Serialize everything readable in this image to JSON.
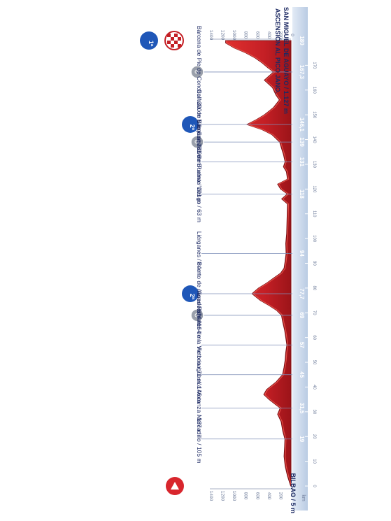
{
  "chart_data": {
    "type": "area",
    "orientation": "rotated-90-clockwise",
    "title": "ASCENSIÓN AL PICO JANO.",
    "finish_label": "SAN MIGUEL DE AGUAYO / 1.127 m",
    "start_label": "BILBAO / 5 m",
    "xlabel": "km",
    "xlim": [
      0,
      180
    ],
    "ylim": [
      0,
      1400
    ],
    "x_ticks": [
      0,
      10,
      20,
      30,
      40,
      50,
      60,
      70,
      80,
      90,
      100,
      110,
      120,
      130,
      140,
      150,
      160,
      170
    ],
    "y_ticks": [
      0,
      200,
      400,
      600,
      800,
      1000,
      1200,
      1400
    ],
    "profile": [
      [
        0,
        5
      ],
      [
        4,
        60
      ],
      [
        8,
        100
      ],
      [
        12,
        120
      ],
      [
        16,
        110
      ],
      [
        19,
        105
      ],
      [
        22,
        140
      ],
      [
        26,
        170
      ],
      [
        29,
        230
      ],
      [
        31.5,
        187
      ],
      [
        33,
        270
      ],
      [
        35,
        380
      ],
      [
        37,
        470
      ],
      [
        39,
        420
      ],
      [
        42,
        260
      ],
      [
        45,
        146
      ],
      [
        48,
        120
      ],
      [
        51,
        100
      ],
      [
        54,
        90
      ],
      [
        57,
        71
      ],
      [
        60,
        90
      ],
      [
        63,
        110
      ],
      [
        66,
        140
      ],
      [
        69,
        164
      ],
      [
        71,
        250
      ],
      [
        73,
        380
      ],
      [
        75,
        530
      ],
      [
        77.7,
        674
      ],
      [
        80,
        560
      ],
      [
        82,
        420
      ],
      [
        84,
        300
      ],
      [
        86,
        180
      ],
      [
        88,
        120
      ],
      [
        91,
        100
      ],
      [
        94,
        84
      ],
      [
        98,
        90
      ],
      [
        102,
        75
      ],
      [
        106,
        70
      ],
      [
        110,
        65
      ],
      [
        114,
        60
      ],
      [
        116,
        160
      ],
      [
        118,
        63
      ],
      [
        120,
        180
      ],
      [
        122,
        230
      ],
      [
        124,
        60
      ],
      [
        127,
        80
      ],
      [
        129,
        130
      ],
      [
        131,
        101
      ],
      [
        134,
        130
      ],
      [
        137,
        170
      ],
      [
        139,
        196
      ],
      [
        142,
        330
      ],
      [
        144,
        500
      ],
      [
        146.1,
        761
      ],
      [
        148,
        600
      ],
      [
        150,
        460
      ],
      [
        153,
        300
      ],
      [
        156,
        200
      ],
      [
        158,
        260
      ],
      [
        161,
        320
      ],
      [
        164,
        460
      ],
      [
        167.3,
        300
      ],
      [
        169,
        400
      ],
      [
        171,
        500
      ],
      [
        173,
        620
      ],
      [
        175,
        780
      ],
      [
        177,
        980
      ],
      [
        179,
        1127
      ],
      [
        180,
        1127
      ]
    ],
    "points": [
      {
        "km": 0,
        "km_label": "",
        "name": "",
        "kind": "start"
      },
      {
        "km": 19,
        "km_label": "19",
        "name": "Mercadillo / 105 m",
        "kind": "town"
      },
      {
        "km": 31.5,
        "km_label": "31,5",
        "name": "La Matanza / 187 m",
        "kind": "town"
      },
      {
        "km": 45,
        "km_label": "45",
        "name": "Ambasaguas / 146 m",
        "kind": "town"
      },
      {
        "km": 57,
        "km_label": "57",
        "name": "Ramales de la Victoria / 71 m",
        "kind": "town"
      },
      {
        "km": 69,
        "km_label": "69",
        "name": "Arredondo / 164 m",
        "kind": "sprint"
      },
      {
        "km": 77.7,
        "km_label": "77,7",
        "name": "Puerto de Alisas / 674 m",
        "kind": "climb",
        "category": "2ª"
      },
      {
        "km": 94,
        "km_label": "94",
        "name": "Liérganes / 84 m",
        "kind": "town"
      },
      {
        "km": 118,
        "km_label": "118",
        "name": "Puente Viesgo / 63 m",
        "kind": "town"
      },
      {
        "km": 131,
        "km_label": "131",
        "name": "Los Corrales de Buelna / 101 m",
        "kind": "town"
      },
      {
        "km": 139,
        "km_label": "139",
        "name": "Villayuso / 196 m",
        "kind": "sprint"
      },
      {
        "km": 146.1,
        "km_label": "146,1",
        "name": "Collada de Brenes / 761 m",
        "kind": "climb",
        "category": "2ª"
      },
      {
        "km": 167.3,
        "km_label": "167,3",
        "name": "Bárcena de Pie de Concha / 300 m",
        "kind": "sprint"
      },
      {
        "km": 180,
        "km_label": "180",
        "name": "",
        "kind": "finish",
        "category": "1ª"
      }
    ],
    "colors": {
      "profile_fill": "#c41f25",
      "profile_dark": "#7a0f14",
      "band": "#c9d7ea",
      "band_text": "#ffffff",
      "label_text": "#1d2a63",
      "climb_badge": "#1f57b8",
      "sprint_badge": "#9aa0ab",
      "start_badge": "#d8262d"
    }
  }
}
